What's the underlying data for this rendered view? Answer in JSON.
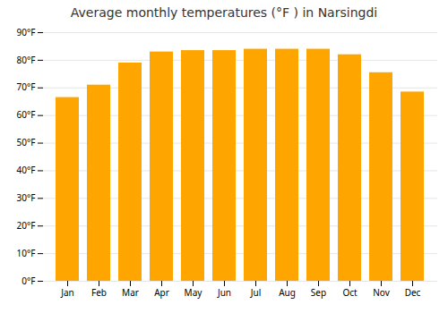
{
  "chart_data": {
    "type": "bar",
    "title": "Average monthly temperatures (°F ) in Narsingdi",
    "categories": [
      "Jan",
      "Feb",
      "Mar",
      "Apr",
      "May",
      "Jun",
      "Jul",
      "Aug",
      "Sep",
      "Oct",
      "Nov",
      "Dec"
    ],
    "values": [
      66.5,
      71.0,
      79.0,
      83.0,
      83.5,
      83.5,
      84.0,
      84.0,
      84.0,
      82.0,
      75.5,
      68.5
    ],
    "color": "#FFA500",
    "ylim": [
      0,
      90
    ],
    "yticks": [
      {
        "value": 0,
        "label": "0°F"
      },
      {
        "value": 10,
        "label": "10°F"
      },
      {
        "value": 20,
        "label": "20°F"
      },
      {
        "value": 30,
        "label": "30°F"
      },
      {
        "value": 40,
        "label": "40°F"
      },
      {
        "value": 50,
        "label": "50°F"
      },
      {
        "value": 60,
        "label": "60°F"
      },
      {
        "value": 70,
        "label": "70°F"
      },
      {
        "value": 80,
        "label": "80°F"
      },
      {
        "value": 90,
        "label": "90°F"
      }
    ],
    "grid": true
  }
}
